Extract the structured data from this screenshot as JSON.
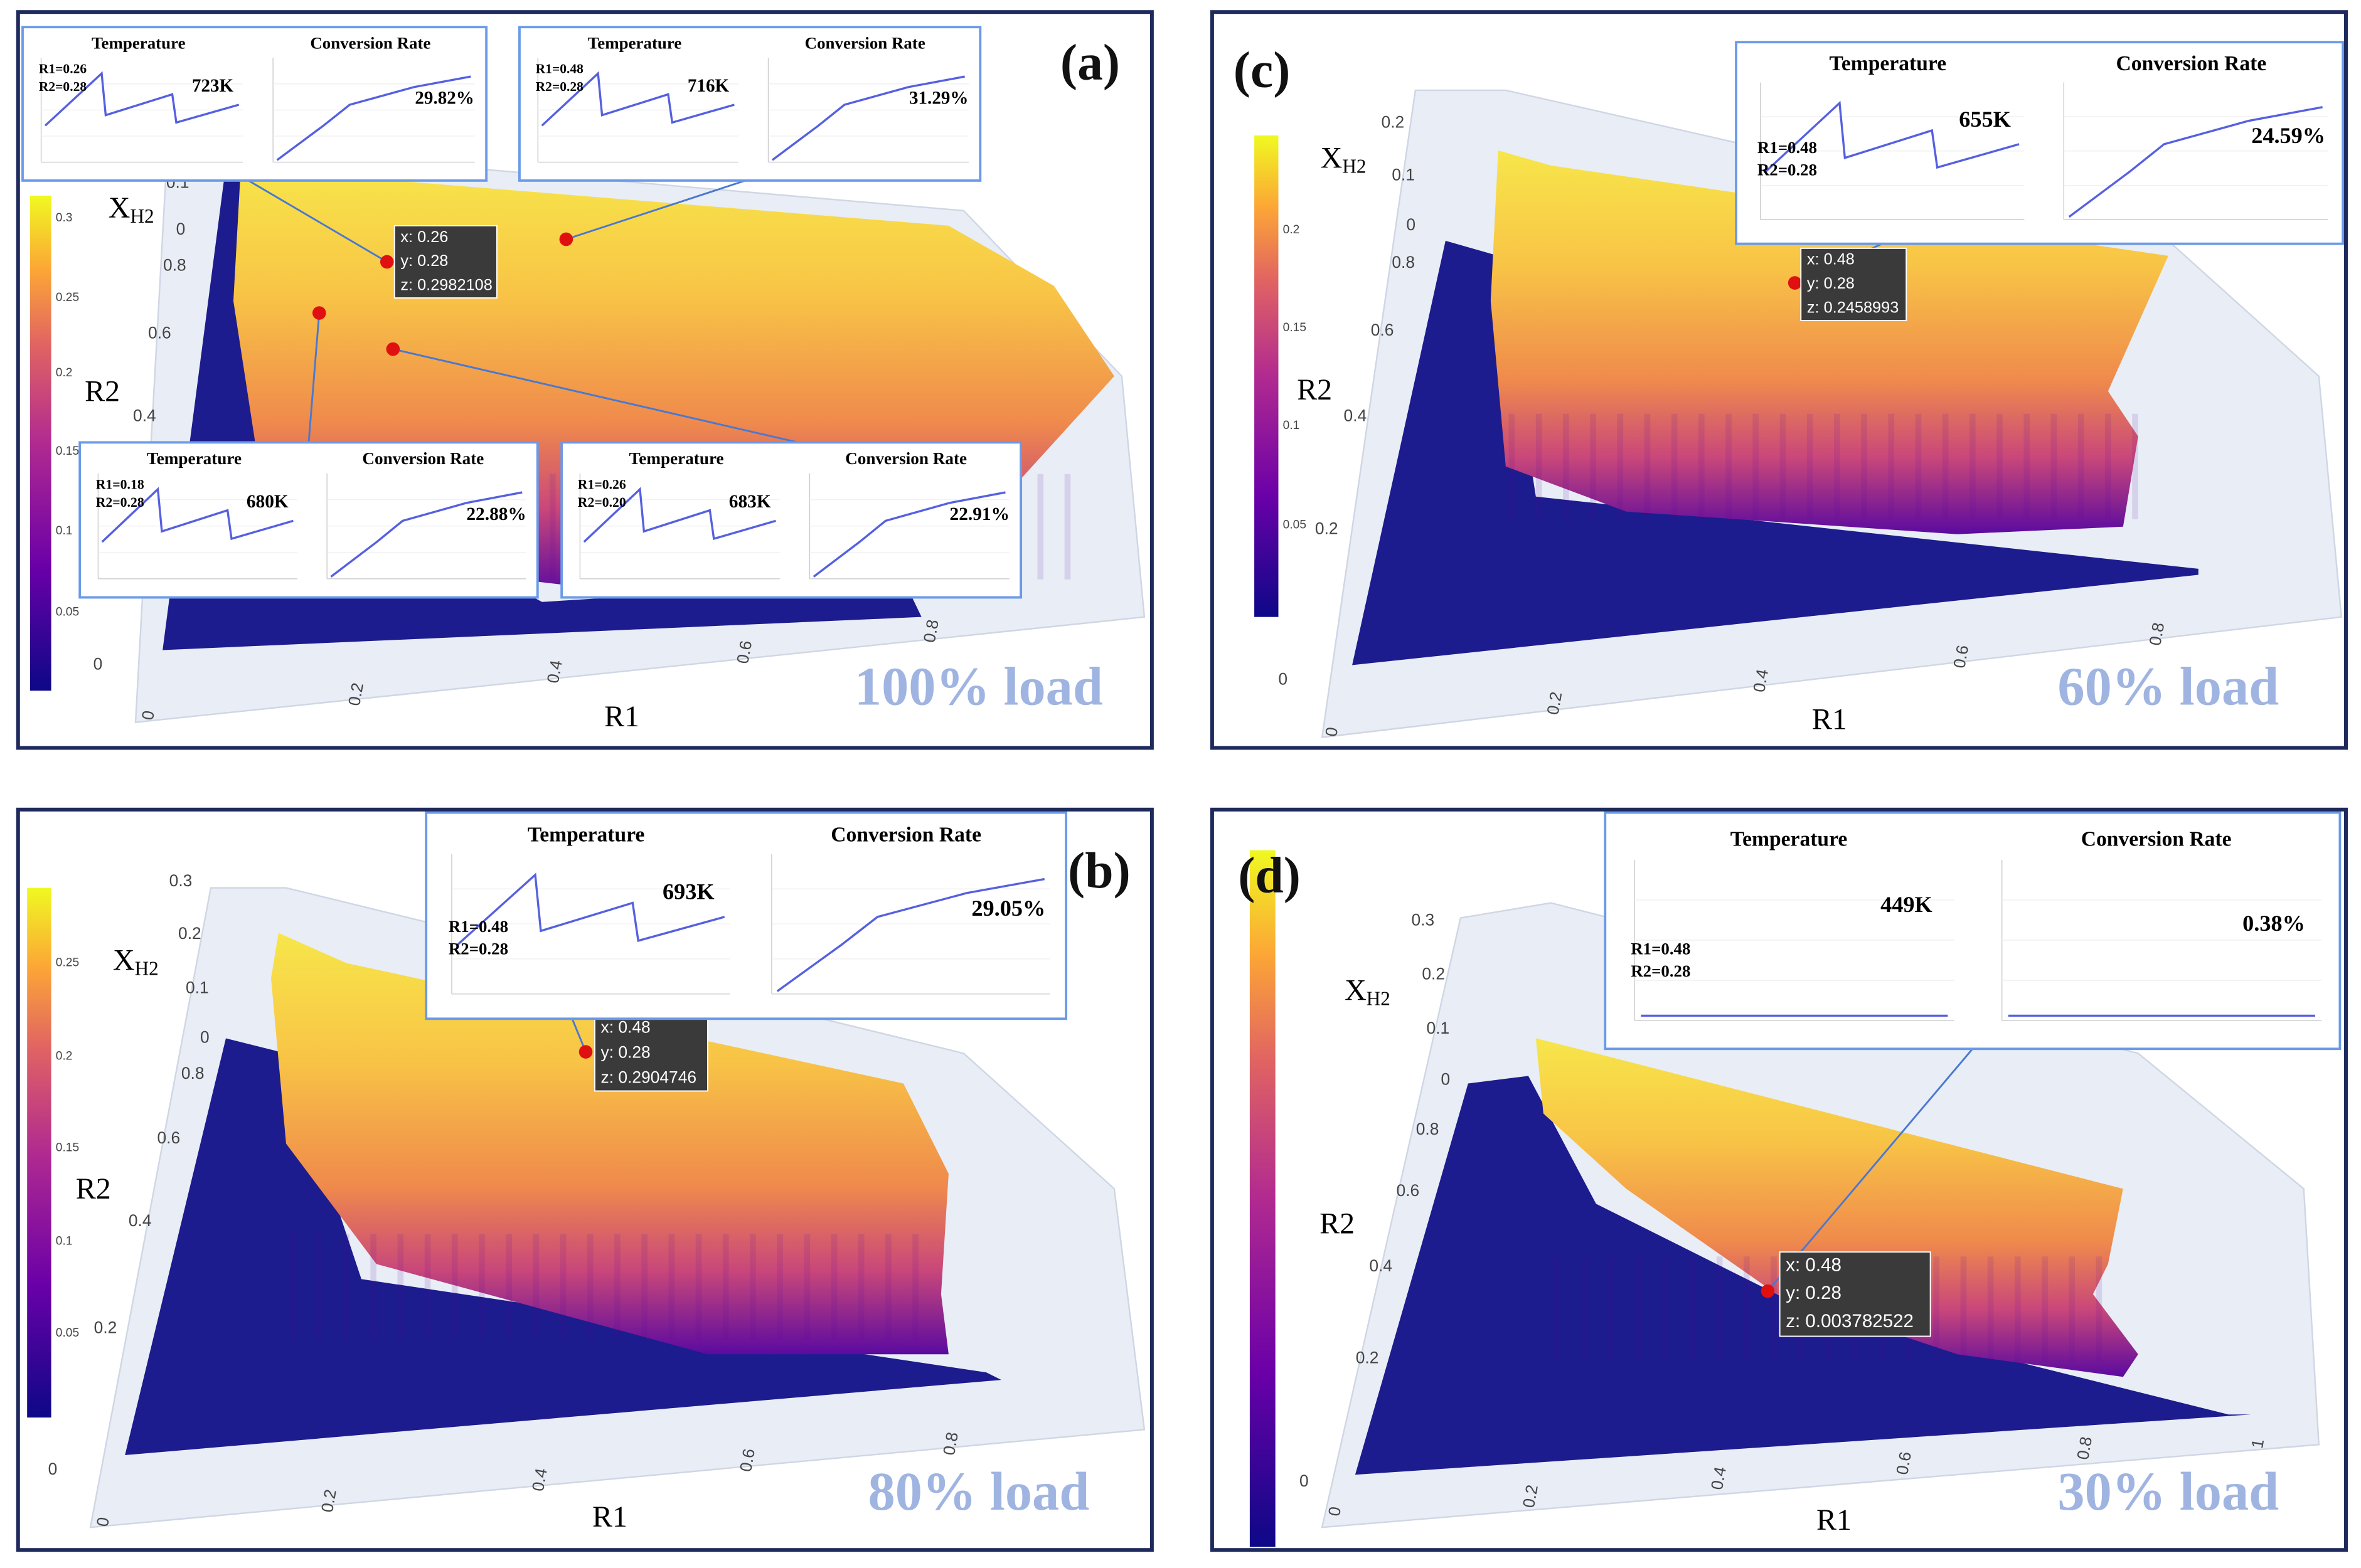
{
  "chart_data": [
    {
      "type": "surface",
      "panel_label": "(a)",
      "load_label": "100% load",
      "x_label": "R1",
      "y_label": "R2",
      "z_label": "X",
      "z_label_sub": "H2",
      "xticks": [
        0,
        0.2,
        0.4,
        0.6,
        0.8
      ],
      "yticks": [
        0,
        0.4,
        0.6,
        0.8
      ],
      "zticks": [
        0,
        0.1
      ],
      "colorbar_ticks": [
        0.05,
        0.1,
        0.15,
        0.2,
        0.25,
        0.3
      ],
      "hover": [
        "x: 0.26",
        "y: 0.28",
        "z: 0.2982108"
      ],
      "insets": [
        {
          "params": [
            "R1=0.26",
            "R2=0.28"
          ],
          "temperature_title": "Temperature",
          "temperature": "723K",
          "conversion_title": "Conversion Rate",
          "conversion": "29.82%"
        },
        {
          "params": [
            "R1=0.48",
            "R2=0.28"
          ],
          "temperature_title": "Temperature",
          "temperature": "716K",
          "conversion_title": "Conversion Rate",
          "conversion": "31.29%"
        },
        {
          "params": [
            "R1=0.18",
            "R2=0.28"
          ],
          "temperature_title": "Temperature",
          "temperature": "680K",
          "conversion_title": "Conversion Rate",
          "conversion": "22.88%"
        },
        {
          "params": [
            "R1=0.26",
            "R2=0.20"
          ],
          "temperature_title": "Temperature",
          "temperature": "683K",
          "conversion_title": "Conversion Rate",
          "conversion": "22.91%"
        }
      ]
    },
    {
      "type": "surface",
      "panel_label": "(b)",
      "load_label": "80% load",
      "x_label": "R1",
      "y_label": "R2",
      "z_label": "X",
      "z_label_sub": "H2",
      "xticks": [
        0,
        0.2,
        0.4,
        0.6,
        0.8
      ],
      "yticks": [
        0,
        0.2,
        0.4,
        0.6,
        0.8
      ],
      "zticks": [
        0,
        0.1,
        0.2,
        0.3
      ],
      "colorbar_ticks": [
        0.05,
        0.1,
        0.15,
        0.2,
        0.25
      ],
      "hover": [
        "x: 0.48",
        "y: 0.28",
        "z: 0.2904746"
      ],
      "insets": [
        {
          "params": [
            "R1=0.48",
            "R2=0.28"
          ],
          "temperature_title": "Temperature",
          "temperature": "693K",
          "conversion_title": "Conversion Rate",
          "conversion": "29.05%"
        }
      ]
    },
    {
      "type": "surface",
      "panel_label": "(c)",
      "load_label": "60% load",
      "x_label": "R1",
      "y_label": "R2",
      "z_label": "X",
      "z_label_sub": "H2",
      "xticks": [
        0,
        0.2,
        0.4,
        0.6,
        0.8
      ],
      "yticks": [
        0,
        0.2,
        0.4,
        0.6,
        0.8
      ],
      "zticks": [
        0,
        0.1,
        0.2
      ],
      "colorbar_ticks": [
        0.05,
        0.1,
        0.15,
        0.2
      ],
      "hover": [
        "x: 0.48",
        "y: 0.28",
        "z: 0.2458993"
      ],
      "insets": [
        {
          "params": [
            "R1=0.48",
            "R2=0.28"
          ],
          "temperature_title": "Temperature",
          "temperature": "655K",
          "conversion_title": "Conversion Rate",
          "conversion": "24.59%"
        }
      ]
    },
    {
      "type": "surface",
      "panel_label": "(d)",
      "load_label": "30% load",
      "x_label": "R1",
      "y_label": "R2",
      "z_label": "X",
      "z_label_sub": "H2",
      "xticks": [
        0,
        0.2,
        0.4,
        0.6,
        0.8,
        1
      ],
      "yticks": [
        0,
        0.2,
        0.4,
        0.6,
        0.8
      ],
      "zticks": [
        0,
        0.1,
        0.2,
        0.3
      ],
      "hover": [
        "x: 0.48",
        "y: 0.28",
        "z: 0.003782522"
      ],
      "insets": [
        {
          "params": [
            "R1=0.48",
            "R2=0.28"
          ],
          "temperature_title": "Temperature",
          "temperature": "449K",
          "conversion_title": "Conversion Rate",
          "conversion": "0.38%"
        }
      ]
    }
  ]
}
